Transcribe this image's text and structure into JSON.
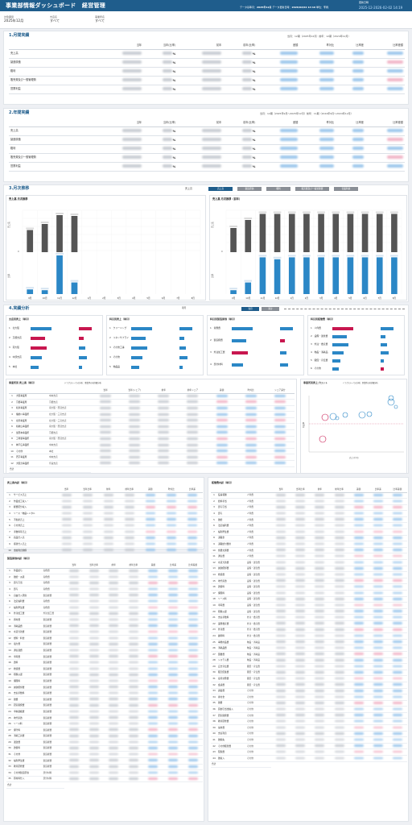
{
  "header": {
    "title": "事業部情報ダッシュボード　経営管理",
    "data_date_label": "データ基準月：",
    "data_date": "2025年12月",
    "update_label": "データ更新日時：",
    "update": "2026/02/02 14:19",
    "unit_label": "単位：",
    "unit": "千円",
    "stamp_label": "更新日時",
    "timestamp": "2025-12-2026-02-02 14:19"
  },
  "filters": [
    {
      "label": "対象期間",
      "value": "2025年12月"
    },
    {
      "label": "支店名",
      "value": "すべて"
    },
    {
      "label": "事業所名",
      "value": "すべて"
    }
  ],
  "sec1": {
    "title": "1.月間実績",
    "note": "当月：12期（2025年12月）前年：12期（2024年12月）",
    "columns": [
      "当年",
      "当年(比率)",
      "前年",
      "前年(比率)",
      "差額",
      "昨対比",
      "比率差",
      "比率差額"
    ],
    "rows": [
      {
        "label": "売上高",
        "pct": "%",
        "pct2": "%"
      },
      {
        "label": "製造原価",
        "pct": "%",
        "pct2": "%"
      },
      {
        "label": "粗利",
        "pct": "%",
        "pct2": "%"
      },
      {
        "label": "販売費及び一般管理費",
        "pct": "%",
        "pct2": "%"
      },
      {
        "label": "営業利益",
        "pct": "%",
        "pct2": "%"
      }
    ]
  },
  "sec2": {
    "title": "2.年間実績",
    "note": "当月：12期（2025年9月～2025年12月）前年：11期（2024年9月～2024年12月）",
    "columns": [
      "当年",
      "当年(比率)",
      "前年",
      "前年(比率)",
      "差額",
      "昨対比",
      "比率差",
      "比率差額"
    ],
    "rows": [
      {
        "label": "売上高",
        "pct": "%",
        "pct2": "%"
      },
      {
        "label": "製造原価",
        "pct": "%",
        "pct2": "%"
      },
      {
        "label": "粗利",
        "pct": "%",
        "pct2": "%"
      },
      {
        "label": "販売費及び一般管理費",
        "pct": "%",
        "pct2": "%"
      },
      {
        "label": "営業利益",
        "pct": "%",
        "pct2": "%"
      }
    ]
  },
  "sec3": {
    "title": "3.月次推移",
    "sel": "売上高",
    "tabs": [
      "売上高",
      "製造原価",
      "粗利",
      "販売費及び一般管理費",
      "営業利益"
    ],
    "left": {
      "title": "売上高 月次推移",
      "ylabel": "売上高",
      "ylabel2": "比率",
      "zero": "0",
      "months": [
        "9月",
        "10月",
        "11月",
        "12月",
        "1月",
        "2月",
        "3月",
        "4月",
        "5月",
        "6月",
        "7月",
        "8月"
      ],
      "prev": [
        0.55,
        0.7,
        0.92,
        0.9
      ],
      "cur": [
        0.12,
        0.1,
        1,
        0.3
      ]
    },
    "right": {
      "title": "売上高 月次推移（前年）",
      "ylabel": "売上高",
      "ylabel2": "比率",
      "zero": "0",
      "months": [
        "9月",
        "10月",
        "11月",
        "12月",
        "1月",
        "2月",
        "3月",
        "4月",
        "5月",
        "6月",
        "7月",
        "8月"
      ],
      "prev": [
        0.6,
        0.8,
        0.95,
        0.95,
        0.95,
        0.95,
        0.95,
        0.95,
        0.95,
        0.95,
        0.95,
        0.95
      ],
      "cur": [
        0.1,
        0.3,
        0.95,
        0.9,
        0.95,
        0.95,
        0.95,
        0.95,
        0.95,
        0.95,
        0.95,
        0.95
      ]
    }
  },
  "sec4": {
    "title": "4.実績分析",
    "period": "期月",
    "toggle": [
      "当月",
      "累計"
    ],
    "cards": [
      {
        "title": "支店別売上（単月）",
        "items": [
          "北大阪",
          "京都支店",
          "南大阪",
          "中部支店",
          "本社"
        ]
      },
      {
        "title": "科目別売上（単月）",
        "items": [
          "クリーニング",
          "リネンサプライ",
          "その他工事",
          "その他",
          "物品品"
        ]
      },
      {
        "title": "科目別製造原価（単月）",
        "items": [
          "労務費",
          "製造経費",
          "外注加工費",
          "部分材料"
        ]
      },
      {
        "title": "科目別販管費（単月）",
        "items": [
          "人件費",
          "設備・運営費",
          "外注・委託費",
          "物品・消耗品",
          "販促・宣伝費",
          "その他"
        ]
      }
    ],
    "office": {
      "title": "事業所別 売上高",
      "sub": "（単月）",
      "note": "ドラグスルーでの分析：事業所の前詳細分析",
      "columns": [
        "当年",
        "当年(シェア)",
        "前年",
        "前年シェア",
        "差額",
        "昨対比",
        "シェア差分"
      ],
      "rows": [
        [
          "1",
          "大阪事業所",
          "中央支店"
        ],
        [
          "2",
          "京都事業所",
          "京都支店"
        ],
        [
          "3",
          "和泉事業所",
          "南大阪・西淀支店"
        ],
        [
          "4",
          "播磨川事業所",
          "北大阪・三宮支店"
        ],
        [
          "5",
          "北陸事業所",
          "北大阪・三宮支店"
        ],
        [
          "6",
          "和歌山事業所",
          "南大阪・西淀支店"
        ],
        [
          "7",
          "加西本事業所",
          "京都支店"
        ],
        [
          "8",
          "工場製事業所",
          "南大阪・西淀支店"
        ],
        [
          "9",
          "神戸広事業所",
          "中央支店"
        ],
        [
          "10",
          "その他",
          "本社"
        ],
        [
          "11",
          "西京事業所",
          "中央支店"
        ],
        [
          "12",
          "大阪営事業所",
          "奈良支店"
        ]
      ],
      "total": "合計"
    },
    "scatter": {
      "title": "事業所別売上プロット",
      "note": "ドラグスルーでの分析：事業所の前詳細分析",
      "xlabel": "売上(千円)",
      "ylabel": "利益率"
    }
  },
  "sales_detail": {
    "title": "売上高内訳",
    "sub": "（単月）",
    "columns": [
      "当年",
      "当年比率",
      "前年",
      "前年比率",
      "差額",
      "昨対比",
      "比率差"
    ],
    "rows": [
      [
        "1",
        "サービス売上"
      ],
      [
        "2",
        "作業加工収入・"
      ],
      [
        "3",
        "経費配分収入"
      ],
      [
        "4",
        "リース・物品レンタル"
      ],
      [
        "5",
        "不動産売上"
      ],
      [
        "6",
        "その他売上"
      ],
      [
        "7",
        "手数料等売上"
      ],
      [
        "8",
        "商品仕入高"
      ],
      [
        "9",
        "振替仕入売上"
      ],
      [
        "10",
        "金融利息関係"
      ],
      [
        "11",
        "その他収入等"
      ]
    ],
    "total": "合計"
  },
  "mfg_detail": {
    "title": "製造原価内訳",
    "sub": "（単月）",
    "columns": [
      "当年",
      "当年比率",
      "前年",
      "前年比率",
      "差額",
      "比率差",
      "比率差額"
    ],
    "rows": [
      [
        "1",
        "作業給与",
        "労務費"
      ],
      [
        "2",
        "雑給・派遣",
        "労務費"
      ],
      [
        "3",
        "賞与引当",
        "労務費"
      ],
      [
        "4",
        "賞与",
        "労務費"
      ],
      [
        "5",
        "自由仕入原価",
        "製造経費"
      ],
      [
        "6",
        "法定福利費",
        "労務費"
      ],
      [
        "7",
        "福利厚生費",
        "労務費"
      ],
      [
        "8",
        "外注加工費",
        "外注加工費"
      ],
      [
        "9",
        "資材費",
        "製造経費"
      ],
      [
        "10",
        "消耗品費",
        "製造経費"
      ],
      [
        "11",
        "水道光熱費",
        "製造経費"
      ],
      [
        "12",
        "燃料・料金",
        "製造経費"
      ],
      [
        "13",
        "電力費",
        "製造経費"
      ],
      [
        "14",
        "通信運費",
        "製造経費"
      ],
      [
        "15",
        "車両費",
        "製造経費"
      ],
      [
        "16",
        "賃料",
        "製造経費"
      ],
      [
        "17",
        "修繕費",
        "製造経費"
      ],
      [
        "18",
        "租税公課",
        "製造経費"
      ],
      [
        "19",
        "保険料",
        "製造経費"
      ],
      [
        "20",
        "減価償却費",
        "製造経費"
      ],
      [
        "21",
        "支払手数料",
        "製造経費"
      ],
      [
        "22",
        "雑費",
        "製造経費"
      ],
      [
        "23",
        "研究開発費",
        "製造経費"
      ],
      [
        "24",
        "車輌運搬費",
        "製造経費"
      ],
      [
        "25",
        "地代家賃",
        "製造経費"
      ],
      [
        "26",
        "リース料",
        "製造経費"
      ],
      [
        "27",
        "保守料",
        "製造経費"
      ],
      [
        "28",
        "消耗工具費",
        "製造経費"
      ],
      [
        "29",
        "運送費",
        "製造経費"
      ],
      [
        "30",
        "賃借料",
        "製造経費"
      ],
      [
        "31",
        "その他",
        "製造経費"
      ],
      [
        "32",
        "福利厚生費",
        "製造経費"
      ],
      [
        "33",
        "教育研修費",
        "製造経費"
      ],
      [
        "34",
        "その他製造原価",
        "部分材料"
      ],
      [
        "35",
        "原材料仕入",
        "部分材料"
      ]
    ],
    "total": "合計"
  },
  "sga_detail": {
    "title": "販管費内訳",
    "sub": "（単月）",
    "columns": [
      "当年",
      "当年比率",
      "前年",
      "前年比率",
      "差額",
      "比率差",
      "比率差額"
    ],
    "rows": [
      [
        "1",
        "役員報酬",
        "人件費"
      ],
      [
        "2",
        "給料手当",
        "人件費"
      ],
      [
        "3",
        "賞与引当",
        "人件費"
      ],
      [
        "4",
        "賞与",
        "人件費"
      ],
      [
        "5",
        "雑給",
        "人件費"
      ],
      [
        "6",
        "法定福利費",
        "人件費"
      ],
      [
        "7",
        "福利厚生費",
        "人件費"
      ],
      [
        "8",
        "退職金",
        "人件費"
      ],
      [
        "9",
        "退職給付費用",
        "人件費"
      ],
      [
        "10",
        "旅費交通費",
        "人件費"
      ],
      [
        "11",
        "通信費",
        "人件費"
      ],
      [
        "12",
        "水道光熱費",
        "設備・運営費"
      ],
      [
        "13",
        "減価償却費",
        "設備・運営費"
      ],
      [
        "14",
        "修繕費",
        "設備・運営費"
      ],
      [
        "15",
        "地代家賃",
        "設備・運営費"
      ],
      [
        "16",
        "賃借料",
        "設備・運営費"
      ],
      [
        "17",
        "保険料",
        "設備・運営費"
      ],
      [
        "18",
        "リース料",
        "設備・運営費"
      ],
      [
        "19",
        "車両費",
        "設備・運営費"
      ],
      [
        "20",
        "租税公課",
        "設備・運営費"
      ],
      [
        "21",
        "支払手数料",
        "外注・委託費"
      ],
      [
        "22",
        "業務委託費",
        "外注・委託費"
      ],
      [
        "23",
        "外注費",
        "外注・委託費"
      ],
      [
        "24",
        "顧問料",
        "外注・委託費"
      ],
      [
        "25",
        "事務用品費",
        "物品・消耗品"
      ],
      [
        "26",
        "消耗品費",
        "物品・消耗品"
      ],
      [
        "27",
        "図書費",
        "物品・消耗品"
      ],
      [
        "28",
        "システム費",
        "物品・消耗品"
      ],
      [
        "29",
        "広告宣伝費",
        "販促・宣伝費"
      ],
      [
        "30",
        "販売促進費",
        "販促・宣伝費"
      ],
      [
        "31",
        "接待交際費",
        "販促・宣伝費"
      ],
      [
        "32",
        "会議費",
        "販促・宣伝費"
      ],
      [
        "33",
        "諸会費",
        "その他"
      ],
      [
        "34",
        "寄付金",
        "その他"
      ],
      [
        "35",
        "雑費",
        "その他"
      ],
      [
        "36",
        "貸倒引当金繰入",
        "その他"
      ],
      [
        "37",
        "研究開発費",
        "その他"
      ],
      [
        "38",
        "教育研修費",
        "その他"
      ],
      [
        "39",
        "採用費",
        "その他"
      ],
      [
        "40",
        "支払利息",
        "その他"
      ],
      [
        "41",
        "雑損失",
        "その他"
      ],
      [
        "42",
        "その他販管費",
        "その他"
      ],
      [
        "43",
        "配賦費",
        "その他"
      ],
      [
        "44",
        "雑収入",
        "その他"
      ]
    ],
    "total": "合計"
  }
}
